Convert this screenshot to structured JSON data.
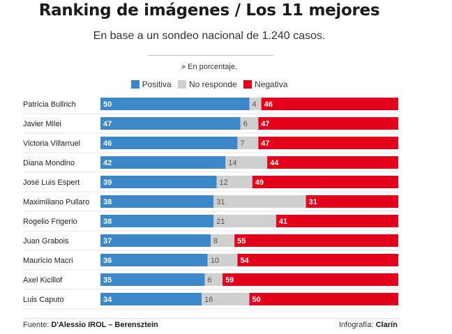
{
  "header": {
    "title": "Ranking de imágenes / Los 11 mejores",
    "subtitle": "En base a un sondeo nacional de 1.240 casos.",
    "note": "» En porcentaje."
  },
  "legend": {
    "positive": "Positiva",
    "no_response": "No responde",
    "negative": "Negativa"
  },
  "colors": {
    "positive": "#3c87c7",
    "no_response": "#cfcfcf",
    "negative": "#e2001a"
  },
  "footer": {
    "source_label": "Fuente:",
    "source_value": "D'Alessio IROL – Berensztein",
    "credit_label": "Infografía:",
    "credit_value": "Clarín"
  },
  "chart_data": {
    "type": "bar",
    "orientation": "horizontal",
    "stacked": true,
    "title": "Ranking de imágenes / Los 11 mejores",
    "subtitle": "En base a un sondeo nacional de 1.240 casos.",
    "categories": [
      "Patricia Bullrich",
      "Javier Milei",
      "Victoria Villarruel",
      "Diana Mondino",
      "José Luis Espert",
      "Maximiliano Pullaro",
      "Rogelio Frigerio",
      "Juan Grabois",
      "Mauricio Macri",
      "Axel Kicillof",
      "Luis Caputo"
    ],
    "series": [
      {
        "name": "Positiva",
        "values": [
          50,
          47,
          46,
          42,
          39,
          38,
          38,
          37,
          36,
          35,
          34
        ]
      },
      {
        "name": "No responde",
        "values": [
          4,
          6,
          7,
          14,
          12,
          31,
          21,
          8,
          10,
          6,
          16
        ]
      },
      {
        "name": "Negativa",
        "values": [
          46,
          47,
          47,
          44,
          49,
          31,
          41,
          55,
          54,
          59,
          50
        ]
      }
    ],
    "legend_position": "top-center",
    "grid": false
  }
}
